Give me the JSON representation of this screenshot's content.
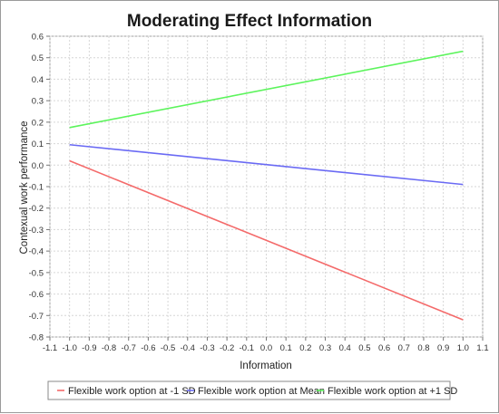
{
  "chart_data": {
    "type": "line",
    "title": "Moderating Effect Information",
    "xlabel": "Information",
    "ylabel": "Contexual work performance",
    "xlim": [
      -1.1,
      1.1
    ],
    "ylim": [
      -0.8,
      0.6
    ],
    "x_ticks": [
      "-1.1",
      "-1.0",
      "-0.9",
      "-0.8",
      "-0.7",
      "-0.6",
      "-0.5",
      "-0.4",
      "-0.3",
      "-0.2",
      "-0.1",
      "0.0",
      "0.1",
      "0.2",
      "0.3",
      "0.4",
      "0.5",
      "0.6",
      "0.7",
      "0.8",
      "0.9",
      "1.0",
      "1.1"
    ],
    "y_ticks": [
      "0.6",
      "0.5",
      "0.4",
      "0.3",
      "0.2",
      "0.1",
      "0.0",
      "-0.1",
      "-0.2",
      "-0.3",
      "-0.4",
      "-0.5",
      "-0.6",
      "-0.7",
      "-0.8"
    ],
    "grid": true,
    "legend_position": "bottom",
    "series": [
      {
        "name": "Flexible work option at -1 SD",
        "color": "#f46a6a",
        "x": [
          -1.0,
          1.0
        ],
        "y": [
          0.02,
          -0.72
        ]
      },
      {
        "name": "Flexible work option at Mean",
        "color": "#6a6af4",
        "x": [
          -1.0,
          1.0
        ],
        "y": [
          0.095,
          -0.09
        ]
      },
      {
        "name": "Flexible work option at +1 SD",
        "color": "#5cf45c",
        "x": [
          -1.0,
          1.0
        ],
        "y": [
          0.175,
          0.53
        ]
      }
    ]
  }
}
